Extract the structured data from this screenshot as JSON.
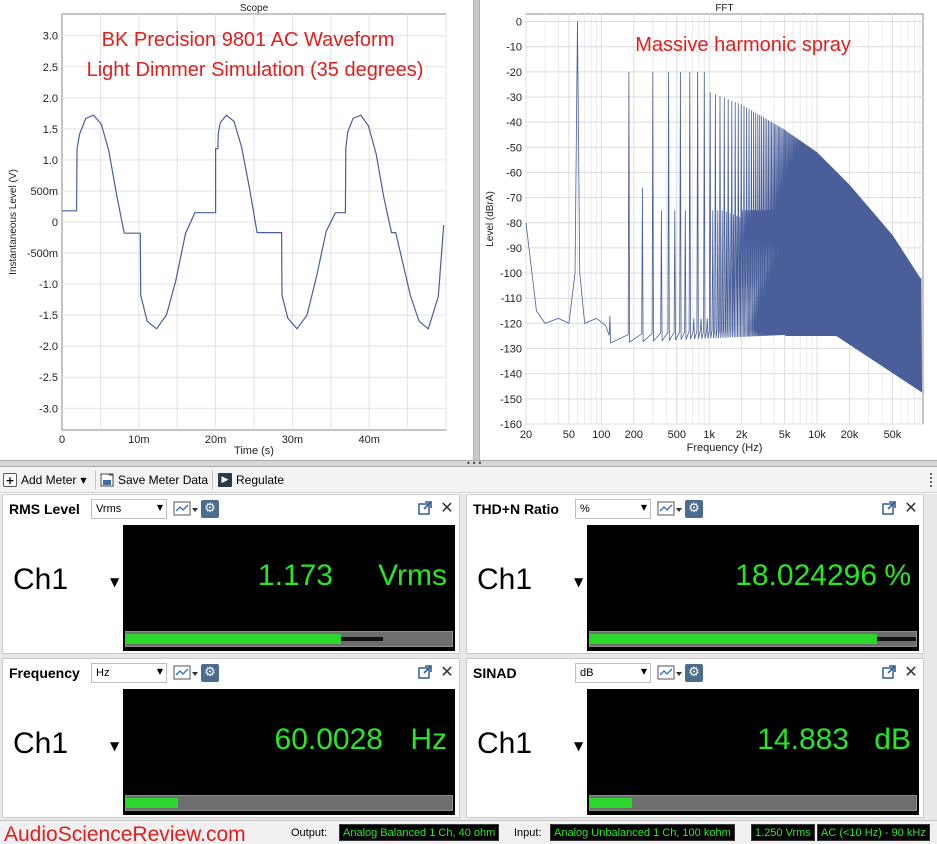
{
  "scope": {
    "title": "Scope",
    "annotation_lines": [
      "BK Precision 9801 AC Waveform",
      "Light Dimmer Simulation (35 degrees)"
    ],
    "annotation_color": "#e02020",
    "chart_data": {
      "type": "line",
      "title": "Scope",
      "xlabel": "Time (s)",
      "ylabel": "Instantaneous Level (V)",
      "xlim": [
        0,
        0.05
      ],
      "ylim": [
        -3.35,
        3.35
      ],
      "x_ticks": [
        0,
        0.01,
        0.02,
        0.03,
        0.04
      ],
      "x_tick_labels": [
        "0",
        "10m",
        "20m",
        "30m",
        "40m"
      ],
      "y_ticks": [
        3.0,
        2.5,
        2.0,
        1.5,
        1.0,
        0.5,
        0,
        -0.5,
        -1.0,
        -1.5,
        -2.0,
        -2.5,
        -3.0
      ],
      "y_tick_labels": [
        "3.0",
        "2.5",
        "2.0",
        "1.5",
        "1.0",
        "500m",
        "0",
        "-500m",
        "-1.0",
        "-1.5",
        "-2.0",
        "-2.5",
        "-3.0"
      ],
      "grid": true,
      "series": [
        {
          "color": "#4a5f9a",
          "x": [
            0,
            0.0019,
            0.00195,
            0.0023,
            0.0031,
            0.0041,
            0.0051,
            0.0061,
            0.0071,
            0.0081,
            0.00835,
            0.01,
            0.0102,
            0.01025,
            0.0111,
            0.0123,
            0.0136,
            0.0148,
            0.0161,
            0.0173,
            0.0181,
            0.01835,
            0.0186,
            0.0188,
            0.0194,
            0.02,
            0.02,
            0.0203,
            0.02035,
            0.0206,
            0.0214,
            0.0224,
            0.0234,
            0.0244,
            0.0254,
            0.0264,
            0.0268,
            0.02685,
            0.0286,
            0.02865,
            0.0294,
            0.0306,
            0.0319,
            0.0331,
            0.0344,
            0.0356,
            0.0366,
            0.03685,
            0.0369,
            0.03695,
            0.0372,
            0.0379,
            0.0389,
            0.0399,
            0.0409,
            0.0419,
            0.0429,
            0.04335,
            0.0434,
            0.04345,
            0.0453,
            0.04535,
            0.0465,
            0.0477,
            0.049,
            0.0497
          ],
          "y": [
            0.18,
            0.18,
            1.18,
            1.42,
            1.67,
            1.72,
            1.58,
            1.15,
            0.45,
            -0.18,
            -0.18,
            -0.18,
            -0.18,
            -1.18,
            -1.6,
            -1.72,
            -1.5,
            -0.95,
            -0.18,
            0.15,
            0.15,
            0.15,
            0.15,
            0.15,
            0.15,
            0.15,
            1.18,
            1.18,
            1.42,
            1.6,
            1.72,
            1.62,
            1.2,
            0.55,
            -0.17,
            -0.17,
            -0.17,
            -0.17,
            -0.17,
            -1.18,
            -1.55,
            -1.72,
            -1.5,
            -0.9,
            -0.15,
            0.15,
            0.15,
            0.15,
            0.15,
            1.18,
            1.45,
            1.67,
            1.72,
            1.55,
            1.1,
            0.4,
            -0.17,
            -0.17,
            -0.17,
            -0.17,
            -1.15,
            -1.18,
            -1.6,
            -1.72,
            -1.2,
            -0.05
          ]
        }
      ]
    }
  },
  "fft": {
    "title": "FFT",
    "annotation": "Massive harmonic spray",
    "annotation_color": "#e02020",
    "chart_data": {
      "type": "line",
      "title": "FFT",
      "xlabel": "Frequency (Hz)",
      "ylabel": "Level (dBrA)",
      "x_scale": "log",
      "xlim": [
        20,
        96000
      ],
      "ylim": [
        -160,
        3
      ],
      "x_ticks": [
        20,
        50,
        100,
        200,
        500,
        1000,
        2000,
        5000,
        10000,
        20000,
        50000
      ],
      "x_tick_labels": [
        "20",
        "50",
        "100",
        "200",
        "500",
        "1k",
        "2k",
        "5k",
        "10k",
        "20k",
        "50k"
      ],
      "y_ticks": [
        0,
        -10,
        -20,
        -30,
        -40,
        -50,
        -60,
        -70,
        -80,
        -90,
        -100,
        -110,
        -120,
        -130,
        -140,
        -150,
        -160
      ],
      "y_tick_labels": [
        "0",
        "-10",
        "-20",
        "-30",
        "-40",
        "-50",
        "-60",
        "-70",
        "-80",
        "-90",
        "-100",
        "-110",
        "-120",
        "-130",
        "-140",
        "-150",
        "-160"
      ],
      "grid": true,
      "fundamental_hz": 60,
      "fundamental_dbra": 0,
      "harmonic_peaks": [
        {
          "hz": 120,
          "dbra": -117
        },
        {
          "hz": 180,
          "dbra": -20
        },
        {
          "hz": 240,
          "dbra": -66
        },
        {
          "hz": 300,
          "dbra": -20
        },
        {
          "hz": 420,
          "dbra": -20
        },
        {
          "hz": 540,
          "dbra": -22
        },
        {
          "hz": 660,
          "dbra": -24
        },
        {
          "hz": 780,
          "dbra": -26
        },
        {
          "hz": 1000,
          "dbra": -28
        },
        {
          "hz": 2000,
          "dbra": -33
        },
        {
          "hz": 5000,
          "dbra": -43
        },
        {
          "hz": 10000,
          "dbra": -52
        },
        {
          "hz": 20000,
          "dbra": -65
        },
        {
          "hz": 50000,
          "dbra": -85
        },
        {
          "hz": 90000,
          "dbra": -102
        }
      ],
      "series": [
        {
          "color": "#4a5f9a"
        }
      ]
    }
  },
  "toolbar": {
    "add_meter": "Add Meter",
    "save_meter_data": "Save Meter Data",
    "regulate": "Regulate"
  },
  "meters": [
    {
      "title": "RMS Level",
      "unit_select": "Vrms",
      "channel": "Ch1",
      "value": "1.173",
      "unit": "Vrms",
      "bar_fraction": 0.66,
      "peak_fraction": 0.79
    },
    {
      "title": "THD+N Ratio",
      "unit_select": "%",
      "channel": "Ch1",
      "value": "18.024296",
      "unit": "%",
      "bar_fraction": 0.88,
      "peak_fraction": 1.0
    },
    {
      "title": "Frequency",
      "unit_select": "Hz",
      "channel": "Ch1",
      "value": "60.0028",
      "unit": "Hz",
      "bar_fraction": 0.16,
      "peak_fraction": 0.16
    },
    {
      "title": "SINAD",
      "unit_select": "dB",
      "channel": "Ch1",
      "value": "14.883",
      "unit": "dB",
      "bar_fraction": 0.13,
      "peak_fraction": 0.13
    }
  ],
  "status": {
    "watermark": "AudioScienceReview.com",
    "output_label": "Output:",
    "output_value": "Analog Balanced 1 Ch, 40 ohm",
    "input_label": "Input:",
    "input_value": "Analog Unbalanced 1 Ch, 100 kohm",
    "input_range": "1.250 Vrms",
    "coupling": "AC (<10 Hz) - 90 kHz"
  }
}
